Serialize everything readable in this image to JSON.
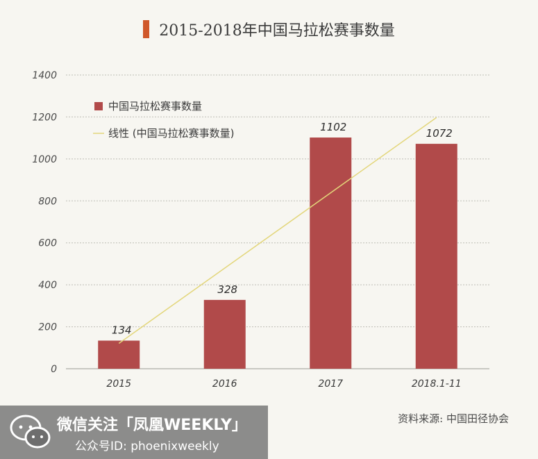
{
  "title": "2015-2018年中国马拉松赛事数量",
  "source": "资料来源: 中国田径协会",
  "watermark": {
    "line1": "微信关注「凤凰WEEKLY」",
    "line2": "公众号ID: phoenixweekly",
    "icon": "wechat-icon"
  },
  "colors": {
    "bar": "#b14a4a",
    "trend": "#e3d67a",
    "title_accent": "#d0582a"
  },
  "chart_data": {
    "type": "bar",
    "categories": [
      "2015",
      "2016",
      "2017",
      "2018.1-11"
    ],
    "series": [
      {
        "name": "中国马拉松赛事数量",
        "values": [
          134,
          328,
          1102,
          1072
        ]
      }
    ],
    "data_labels": [
      "134",
      "328",
      "1102",
      "1072"
    ],
    "trendline": {
      "name": "线性 (中国马拉松赛事数量)",
      "type": "linear"
    },
    "ylim": [
      0,
      1400
    ],
    "yticks": [
      0,
      200,
      400,
      600,
      800,
      1000,
      1200,
      1400
    ],
    "grid": true,
    "legend": "top-left",
    "xlabel": "",
    "ylabel": ""
  }
}
